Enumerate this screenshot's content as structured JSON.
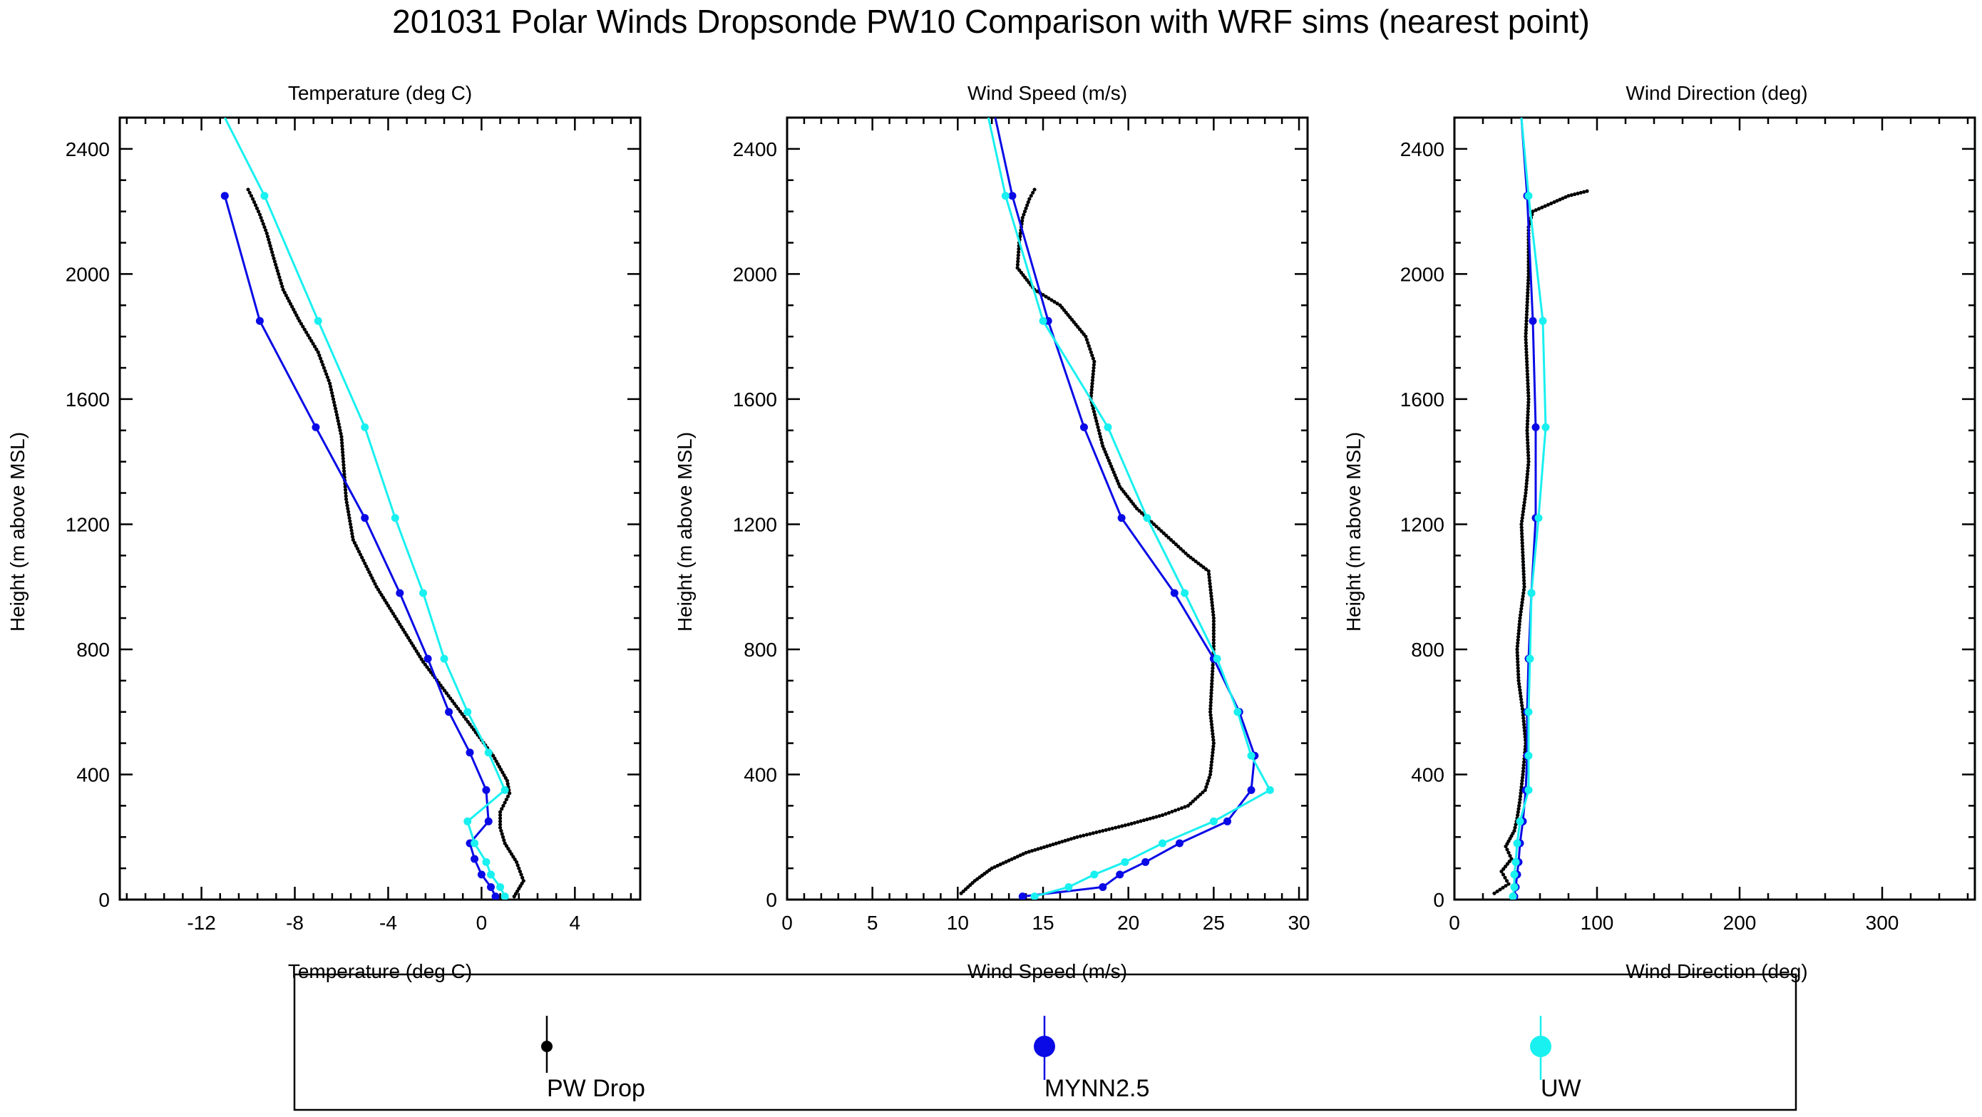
{
  "title": "201031 Polar Winds Dropsonde PW10 Comparison with WRF sims (nearest point)",
  "colors": {
    "drop": "#000000",
    "mynn": "#0a0ae6",
    "uw": "#19f0f0"
  },
  "legend": [
    {
      "label": "PW Drop",
      "color": "#000000",
      "marker": "small-dot"
    },
    {
      "label": "MYNN2.5",
      "color": "#0a0ae6",
      "marker": "large-dot"
    },
    {
      "label": "UW",
      "color": "#19f0f0",
      "marker": "large-dot"
    }
  ],
  "chart_data": [
    {
      "type": "line",
      "title": "Temperature (deg C)",
      "xlabel": "Temperature (deg C)",
      "ylabel": "Height (m above MSL)",
      "xlim": [
        -15.5,
        6.8
      ],
      "ylim": [
        0,
        2500
      ],
      "xticks": [
        -12,
        -8,
        -4,
        0,
        4
      ],
      "yticks": [
        0,
        400,
        800,
        1200,
        1600,
        2000,
        2400
      ],
      "series": [
        {
          "name": "PW Drop",
          "style": "dots",
          "x": [
            1.4,
            1.8,
            1.5,
            1.0,
            0.8,
            0.8,
            1.0,
            1.2,
            1.1,
            0.5,
            -0.5,
            -1.5,
            -2.5,
            -3.5,
            -4.5,
            -5.5,
            -5.8,
            -5.9,
            -6.0,
            -6.2,
            -6.5,
            -7.0,
            -7.8,
            -8.5,
            -8.9,
            -9.2,
            -9.5,
            -9.8,
            -10.0
          ],
          "y": [
            10,
            60,
            120,
            180,
            230,
            280,
            310,
            340,
            380,
            460,
            560,
            660,
            760,
            880,
            1000,
            1150,
            1280,
            1380,
            1480,
            1550,
            1650,
            1750,
            1850,
            1950,
            2050,
            2130,
            2190,
            2240,
            2270
          ]
        },
        {
          "name": "MYNN2.5",
          "style": "line",
          "x": [
            0.6,
            0.4,
            0.0,
            -0.3,
            -0.5,
            0.3,
            0.2,
            -0.5,
            -1.4,
            -2.3,
            -3.5,
            -5.0,
            -7.1,
            -9.5,
            -11.0
          ],
          "y": [
            10,
            40,
            80,
            130,
            180,
            250,
            350,
            470,
            600,
            770,
            980,
            1220,
            1510,
            1850,
            2250
          ]
        },
        {
          "name": "UW",
          "style": "line",
          "x": [
            1.0,
            0.8,
            0.4,
            0.2,
            -0.3,
            -0.6,
            1.0,
            0.3,
            -0.6,
            -1.6,
            -2.5,
            -3.7,
            -5.0,
            -7.0,
            -9.3,
            -11.0
          ],
          "y": [
            10,
            40,
            80,
            120,
            180,
            250,
            350,
            470,
            600,
            770,
            980,
            1220,
            1510,
            1850,
            2250,
            2500
          ]
        }
      ]
    },
    {
      "type": "line",
      "title": "Wind Speed (m/s)",
      "xlabel": "Wind Speed (m/s)",
      "ylabel": "Height (m above MSL)",
      "xlim": [
        0,
        30.5
      ],
      "ylim": [
        0,
        2500
      ],
      "xticks": [
        0,
        5,
        10,
        15,
        20,
        25,
        30
      ],
      "yticks": [
        0,
        400,
        800,
        1200,
        1600,
        2000,
        2400
      ],
      "series": [
        {
          "name": "PW Drop",
          "style": "dots",
          "x": [
            10.2,
            11.0,
            12.0,
            14.0,
            17.0,
            20.0,
            22.0,
            23.5,
            24.5,
            24.8,
            25.0,
            24.8,
            24.9,
            25.0,
            25.0,
            24.8,
            24.7,
            23.5,
            22.5,
            21.5,
            20.5,
            19.5,
            18.5,
            17.8,
            18.0,
            17.5,
            16.0,
            14.5,
            13.5,
            13.6,
            13.8,
            14.2,
            14.5
          ],
          "y": [
            20,
            60,
            100,
            150,
            200,
            240,
            270,
            300,
            350,
            400,
            500,
            600,
            700,
            800,
            900,
            1000,
            1050,
            1100,
            1150,
            1200,
            1250,
            1320,
            1450,
            1600,
            1720,
            1800,
            1900,
            1950,
            2020,
            2100,
            2180,
            2240,
            2270
          ]
        },
        {
          "name": "MYNN2.5",
          "style": "line",
          "x": [
            13.8,
            18.5,
            19.5,
            21.0,
            23.0,
            25.8,
            27.2,
            27.4,
            26.5,
            25.0,
            22.7,
            19.6,
            17.4,
            15.3,
            13.2,
            12.2
          ],
          "y": [
            10,
            40,
            80,
            120,
            180,
            250,
            350,
            460,
            600,
            770,
            980,
            1220,
            1510,
            1850,
            2250,
            2500
          ]
        },
        {
          "name": "UW",
          "style": "line",
          "x": [
            14.5,
            16.5,
            18.0,
            19.8,
            22.0,
            25.0,
            28.3,
            27.2,
            26.4,
            25.2,
            23.3,
            21.1,
            18.8,
            15.0,
            12.8,
            11.8
          ],
          "y": [
            10,
            40,
            80,
            120,
            180,
            250,
            350,
            460,
            600,
            770,
            980,
            1220,
            1510,
            1850,
            2250,
            2500
          ]
        }
      ]
    },
    {
      "type": "line",
      "title": "Wind Direction (deg)",
      "xlabel": "Wind Direction (deg)",
      "ylabel": "Height (m above MSL)",
      "xlim": [
        0,
        365
      ],
      "ylim": [
        0,
        2500
      ],
      "xticks": [
        0,
        100,
        200,
        300
      ],
      "yticks": [
        0,
        400,
        800,
        1200,
        1600,
        2000,
        2400
      ],
      "series": [
        {
          "name": "PW Drop",
          "style": "dots",
          "x": [
            28,
            38,
            33,
            40,
            36,
            42,
            44,
            46,
            48,
            50,
            48,
            45,
            44,
            46,
            49,
            48,
            47,
            50,
            52,
            51,
            52,
            50,
            52,
            52,
            55,
            70,
            80,
            93
          ],
          "y": [
            20,
            50,
            90,
            130,
            170,
            220,
            260,
            320,
            400,
            500,
            600,
            700,
            800,
            900,
            1000,
            1100,
            1200,
            1300,
            1400,
            1500,
            1600,
            1800,
            2000,
            2150,
            2200,
            2230,
            2250,
            2265
          ]
        },
        {
          "name": "MYNN2.5",
          "style": "line",
          "x": [
            42,
            43,
            44,
            45,
            46,
            48,
            50,
            51,
            51,
            52,
            54,
            57,
            57,
            55,
            51,
            47
          ],
          "y": [
            10,
            40,
            80,
            120,
            180,
            250,
            350,
            460,
            600,
            770,
            980,
            1220,
            1510,
            1850,
            2250,
            2500
          ]
        },
        {
          "name": "UW",
          "style": "line",
          "x": [
            41,
            42,
            42,
            43,
            44,
            46,
            52,
            52,
            52,
            53,
            54,
            59,
            64,
            62,
            52,
            47
          ],
          "y": [
            10,
            40,
            80,
            120,
            180,
            250,
            350,
            460,
            600,
            770,
            980,
            1220,
            1510,
            1850,
            2250,
            2500
          ]
        }
      ]
    }
  ]
}
